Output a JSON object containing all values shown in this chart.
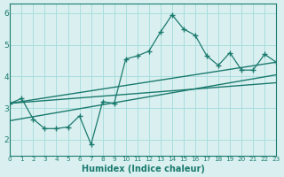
{
  "x_main": [
    0,
    1,
    2,
    3,
    4,
    5,
    6,
    7,
    8,
    9,
    10,
    11,
    12,
    13,
    14,
    15,
    16,
    17,
    18,
    19,
    20,
    21,
    22,
    23
  ],
  "y_main": [
    3.15,
    3.3,
    2.65,
    2.35,
    2.35,
    2.4,
    2.75,
    1.85,
    3.2,
    3.15,
    4.55,
    4.65,
    4.8,
    5.4,
    5.95,
    5.5,
    5.3,
    4.65,
    4.35,
    4.75,
    4.2,
    4.2,
    4.7,
    4.45
  ],
  "trend1_x": [
    0,
    23
  ],
  "trend1_y": [
    3.15,
    4.45
  ],
  "trend2_x": [
    0,
    23
  ],
  "trend2_y": [
    3.15,
    3.8
  ],
  "trend3_x": [
    0,
    23
  ],
  "trend3_y": [
    2.6,
    4.05
  ],
  "bg_color": "#daf0f0",
  "line_color": "#1a7a6e",
  "grid_color": "#aadddd",
  "xlabel": "Humidex (Indice chaleur)",
  "ylim": [
    1.5,
    6.3
  ],
  "xlim": [
    0,
    23
  ],
  "yticks": [
    2,
    3,
    4,
    5,
    6
  ],
  "xticks": [
    0,
    1,
    2,
    3,
    4,
    5,
    6,
    7,
    8,
    9,
    10,
    11,
    12,
    13,
    14,
    15,
    16,
    17,
    18,
    19,
    20,
    21,
    22,
    23
  ]
}
